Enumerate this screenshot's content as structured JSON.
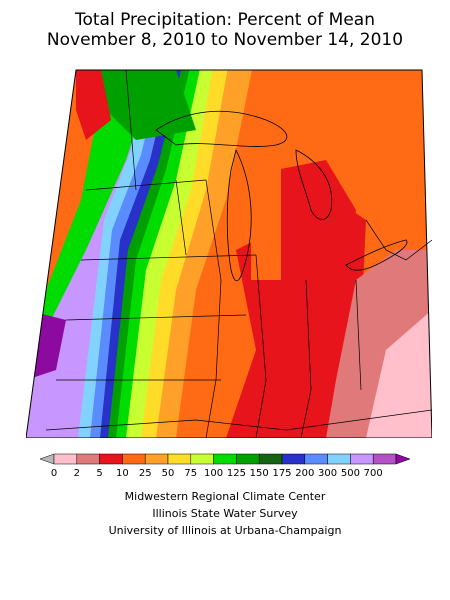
{
  "title": {
    "line1": "Total Precipitation: Percent of Mean",
    "line2": "November 8, 2010 to November 14, 2010"
  },
  "legend": {
    "labels": [
      "0",
      "2",
      "5",
      "10",
      "25",
      "50",
      "75",
      "100",
      "125",
      "150",
      "175",
      "200",
      "300",
      "500",
      "700"
    ],
    "colors": [
      "#b8b8b8",
      "#ffc0cb",
      "#e07a7a",
      "#e8141c",
      "#ff6a14",
      "#ffa028",
      "#ffdc28",
      "#c8ff32",
      "#00dc00",
      "#00a000",
      "#146414",
      "#2832c8",
      "#5a8cff",
      "#82d2ff",
      "#c896ff",
      "#b450c8",
      "#8c0aa0"
    ]
  },
  "credits": {
    "line1": "Midwestern Regional Climate Center",
    "line2": "Illinois State Water Survey",
    "line3": "University of Illinois at Urbana-Champaign"
  },
  "map_regions": [
    {
      "name": "far-west-purple",
      "color": "#8c0aa0"
    },
    {
      "name": "west-lavender",
      "color": "#c896ff"
    },
    {
      "name": "wisconsin-lavender",
      "color": "#c896ff"
    },
    {
      "name": "central-red",
      "color": "#e8141c"
    },
    {
      "name": "ohio-red",
      "color": "#e8141c"
    },
    {
      "name": "east-pink",
      "color": "#ffc0cb"
    }
  ]
}
